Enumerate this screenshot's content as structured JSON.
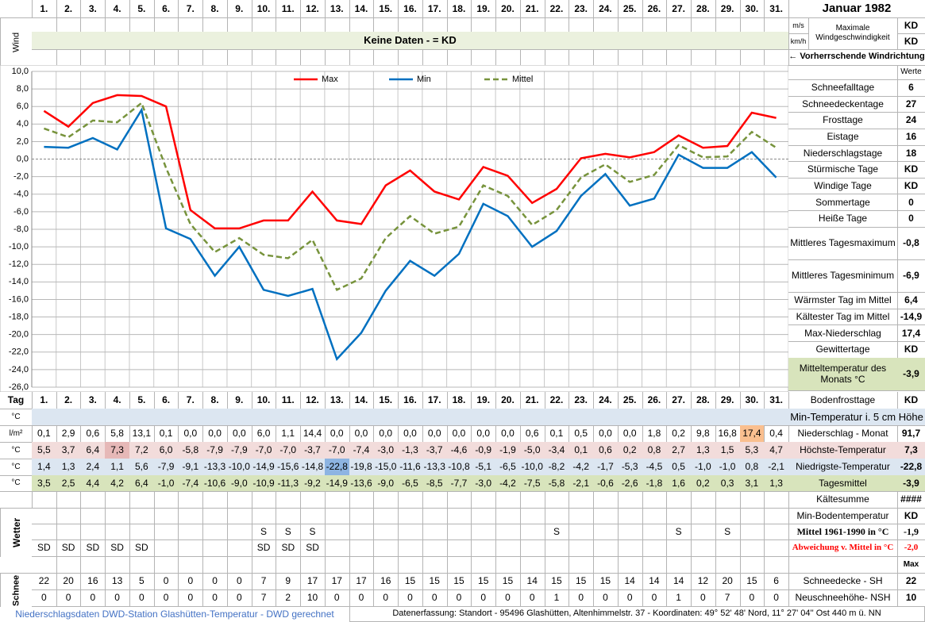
{
  "header": {
    "month": "Januar 1982",
    "wind_label": "Wind",
    "unit_ms": "m/s",
    "unit_kmh": "km/h",
    "max_wind_label": "Maximale Windgeschwindigkeit",
    "max_wind_ms": "KD",
    "max_wind_kmh": "KD",
    "no_data": "Keine Daten -  = KD",
    "wind_direction": "← Vorherrschende Windrichtung",
    "values_header": "Werte"
  },
  "chart_data": {
    "type": "line",
    "categories": [
      "1.",
      "2.",
      "3.",
      "4.",
      "5.",
      "6.",
      "7.",
      "8.",
      "9.",
      "10.",
      "11.",
      "12.",
      "13.",
      "14.",
      "15.",
      "16.",
      "17.",
      "18.",
      "19.",
      "20.",
      "21.",
      "22.",
      "23.",
      "24.",
      "25.",
      "26.",
      "27.",
      "28.",
      "29.",
      "30.",
      "31."
    ],
    "series": [
      {
        "name": "Max",
        "color": "#ff0000",
        "dashed": false,
        "values": [
          5.5,
          3.7,
          6.4,
          7.3,
          7.2,
          6.0,
          -5.8,
          -7.9,
          -7.9,
          -7.0,
          -7.0,
          -3.7,
          -7.0,
          -7.4,
          -3.0,
          -1.3,
          -3.7,
          -4.6,
          -0.9,
          -1.9,
          -5.0,
          -3.4,
          0.1,
          0.6,
          0.2,
          0.8,
          2.7,
          1.3,
          1.5,
          5.3,
          4.7
        ],
        "value_labels": [
          "5,5",
          "3,7",
          "6,4",
          "7,3",
          "7,2",
          "6,0",
          "-5,8",
          "-7,9",
          "-7,9",
          "-7,0",
          "-7,0",
          "-3,7",
          "-7,0",
          "-7,4",
          "-3,0",
          "-1,3",
          "-3,7",
          "-4,6",
          "-0,9",
          "-1,9",
          "-5,0",
          "-3,4",
          "0,1",
          "0,6",
          "0,2",
          "0,8",
          "2,7",
          "1,3",
          "1,5",
          "5,3",
          "4,7"
        ]
      },
      {
        "name": "Min",
        "color": "#0070c0",
        "dashed": false,
        "values": [
          1.4,
          1.3,
          2.4,
          1.1,
          5.6,
          -7.9,
          -9.1,
          -13.3,
          -10.0,
          -14.9,
          -15.6,
          -14.8,
          -22.8,
          -19.8,
          -15.0,
          -11.6,
          -13.3,
          -10.8,
          -5.1,
          -6.5,
          -10.0,
          -8.2,
          -4.2,
          -1.7,
          -5.3,
          -4.5,
          0.5,
          -1.0,
          -1.0,
          0.8,
          -2.1
        ],
        "value_labels": [
          "1,4",
          "1,3",
          "2,4",
          "1,1",
          "5,6",
          "-7,9",
          "-9,1",
          "-13,3",
          "-10,0",
          "-14,9",
          "-15,6",
          "-14,8",
          "-22,8",
          "-19,8",
          "-15,0",
          "-11,6",
          "-13,3",
          "-10,8",
          "-5,1",
          "-6,5",
          "-10,0",
          "-8,2",
          "-4,2",
          "-1,7",
          "-5,3",
          "-4,5",
          "0,5",
          "-1,0",
          "-1,0",
          "0,8",
          "-2,1"
        ]
      },
      {
        "name": "Mittel",
        "color": "#77933c",
        "dashed": true,
        "values": [
          3.5,
          2.5,
          4.4,
          4.2,
          6.4,
          -1.0,
          -7.4,
          -10.6,
          -9.0,
          -10.9,
          -11.3,
          -9.2,
          -14.9,
          -13.6,
          -9.0,
          -6.5,
          -8.5,
          -7.7,
          -3.0,
          -4.2,
          -7.5,
          -5.8,
          -2.1,
          -0.6,
          -2.6,
          -1.8,
          1.6,
          0.2,
          0.3,
          3.1,
          1.3
        ],
        "value_labels": [
          "3,5",
          "2,5",
          "4,4",
          "4,2",
          "6,4",
          "-1,0",
          "-7,4",
          "-10,6",
          "-9,0",
          "-10,9",
          "-11,3",
          "-9,2",
          "-14,9",
          "-13,6",
          "-9,0",
          "-6,5",
          "-8,5",
          "-7,7",
          "-3,0",
          "-4,2",
          "-7,5",
          "-5,8",
          "-2,1",
          "-0,6",
          "-2,6",
          "-1,8",
          "1,6",
          "0,2",
          "0,3",
          "3,1",
          "1,3"
        ]
      }
    ],
    "ylim": [
      -26,
      10
    ],
    "yticks": [
      {
        "value": 10,
        "label": "10,0"
      },
      {
        "value": 8,
        "label": "8,0"
      },
      {
        "value": 6,
        "label": "6,0"
      },
      {
        "value": 4,
        "label": "4,0"
      },
      {
        "value": 2,
        "label": "2,0"
      },
      {
        "value": 0,
        "label": "0,0"
      },
      {
        "value": -2,
        "label": "-2,0"
      },
      {
        "value": -4,
        "label": "-4,0"
      },
      {
        "value": -6,
        "label": "-6,0"
      },
      {
        "value": -8,
        "label": "-8,0"
      },
      {
        "value": -10,
        "label": "-10,0"
      },
      {
        "value": -12,
        "label": "-12,0"
      },
      {
        "value": -14,
        "label": "-14,0"
      },
      {
        "value": -16,
        "label": "-16,0"
      },
      {
        "value": -18,
        "label": "-18,0"
      },
      {
        "value": -20,
        "label": "-20,0"
      },
      {
        "value": -22,
        "label": "-22,0"
      },
      {
        "value": -24,
        "label": "-24,0"
      },
      {
        "value": -26,
        "label": "-26,0"
      }
    ],
    "grid": true,
    "legend": "top"
  },
  "stats": [
    {
      "label": "Schneefalltage",
      "value": 6
    },
    {
      "label": "Schneedeckentage",
      "value": 27
    },
    {
      "label": "Frosttage",
      "value": 24
    },
    {
      "label": "Eistage",
      "value": 16
    },
    {
      "label": "Niederschlagstage",
      "value": 18
    },
    {
      "label": "Stürmische Tage",
      "value": "KD"
    },
    {
      "label": "Windige Tage",
      "value": "KD"
    },
    {
      "label": "Sommertage",
      "value": 0
    },
    {
      "label": "Heiße Tage",
      "value": 0
    },
    {
      "label": "Mittleres Tagesmaximum",
      "value": "-0,8"
    },
    {
      "label": "Mittleres Tagesminimum",
      "value": "-6,9"
    },
    {
      "label": "Wärmster Tag im Mittel",
      "value": "6,4"
    },
    {
      "label": "Kältester Tag im Mittel",
      "value": "-14,9"
    },
    {
      "label": "Max-Niederschlag",
      "value": "17,4"
    },
    {
      "label": "Gewittertage",
      "value": "KD"
    },
    {
      "label": "Mitteltemperatur des Monats °C",
      "value": "-3,9"
    }
  ],
  "table": {
    "day_label": "Tag",
    "bodenfrost": {
      "label": "Bodenfrosttage",
      "value": "KD"
    },
    "row_labels": [
      "°C",
      "l/m²",
      "°C",
      "°C",
      "°C"
    ],
    "weather_label": "Wetter",
    "snow_label": "Schnee",
    "precipitation": [
      "0,1",
      "2,9",
      "0,6",
      "5,8",
      "13,1",
      "0,1",
      "0,0",
      "0,0",
      "0,0",
      "6,0",
      "1,1",
      "14,4",
      "0,0",
      "0,0",
      "0,0",
      "0,0",
      "0,0",
      "0,0",
      "0,0",
      "0,0",
      "0,6",
      "0,1",
      "0,5",
      "0,0",
      "0,0",
      "1,8",
      "0,2",
      "9,8",
      "16,8",
      "17,4",
      "0,4"
    ],
    "weather1": [
      null,
      null,
      null,
      null,
      null,
      null,
      null,
      null,
      null,
      "S",
      "S",
      "S",
      null,
      null,
      null,
      null,
      null,
      null,
      null,
      null,
      null,
      "S",
      null,
      null,
      null,
      null,
      "S",
      null,
      "S",
      null,
      null
    ],
    "weather2": [
      "SD",
      "SD",
      "SD",
      "SD",
      "SD",
      null,
      null,
      null,
      null,
      "SD",
      "SD",
      "SD",
      null,
      null,
      null,
      null,
      null,
      null,
      null,
      null,
      null,
      null,
      null,
      null,
      null,
      null,
      null,
      null,
      null,
      null,
      null
    ],
    "snow_depth": [
      22,
      20,
      16,
      13,
      5,
      0,
      0,
      0,
      0,
      7,
      9,
      17,
      17,
      17,
      16,
      15,
      15,
      15,
      15,
      15,
      14,
      15,
      15,
      15,
      14,
      14,
      14,
      12,
      20,
      15,
      6
    ],
    "new_snow": [
      0,
      0,
      0,
      0,
      0,
      0,
      0,
      0,
      0,
      7,
      2,
      10,
      0,
      0,
      0,
      0,
      0,
      0,
      0,
      0,
      0,
      1,
      0,
      0,
      0,
      0,
      1,
      0,
      7,
      0,
      0
    ],
    "lower_stats": [
      {
        "label": "Min-Temperatur i. 5 cm Höhe"
      },
      {
        "label": "Niederschlag - Monat",
        "value": "91,7"
      },
      {
        "label": "Höchste-Temperatur",
        "value": "7,3"
      },
      {
        "label": "Niedrigste-Temperatur",
        "value": "-22,8"
      },
      {
        "label": "Tagesmittel",
        "value": "-3,9"
      },
      {
        "label": "Kältesumme",
        "value": "####"
      },
      {
        "label": "Min-Bodentemperatur",
        "value": "KD"
      },
      {
        "label": "Mittel 1961-1990 in °C",
        "value": "-1,9"
      },
      {
        "label": "Abweichung v. Mittel in °C",
        "value": "-2,0"
      },
      {
        "value": "Max"
      },
      {
        "label": "Schneedecke -  SH",
        "value": 22
      },
      {
        "label": "Neuschneehöhe- NSH",
        "value": 10
      }
    ]
  },
  "footer": {
    "left": "Niederschlagsdaten DWD-Station Glashütten-Temperatur -  DWD gerechnet",
    "right": "Datenerfassung: Standort -  95496  Glashütten, Altenhimmelstr. 37 - Koordinaten:  49° 52' 48' Nord,   11° 27' 04'' Ost   440 m ü. NN"
  }
}
